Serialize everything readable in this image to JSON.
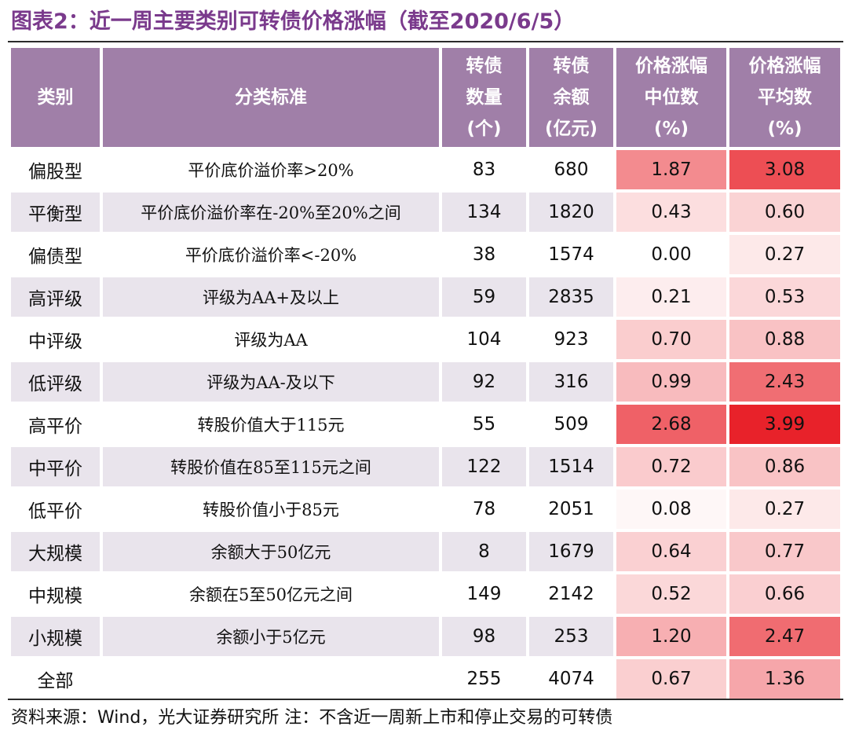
{
  "title": "图表2：近一周主要类别可转债价格涨幅（截至2020/6/5）",
  "headers": {
    "category": "类别",
    "criteria": "分类标准",
    "count": [
      "转债",
      "数量",
      "(个)"
    ],
    "balance": [
      "转债",
      "余额",
      "(亿元)"
    ],
    "median": [
      "价格涨幅",
      "中位数",
      "(%)"
    ],
    "mean": [
      "价格涨幅",
      "平均数",
      "(%)"
    ]
  },
  "rows": [
    {
      "category": "偏股型",
      "criteria": "平价底价溢价率>20%",
      "count": "83",
      "balance": "680",
      "median": "1.87",
      "mean": "3.08"
    },
    {
      "category": "平衡型",
      "criteria": "平价底价溢价率在-20%至20%之间",
      "count": "134",
      "balance": "1820",
      "median": "0.43",
      "mean": "0.60"
    },
    {
      "category": "偏债型",
      "criteria": "平价底价溢价率<-20%",
      "count": "38",
      "balance": "1574",
      "median": "0.00",
      "mean": "0.27"
    },
    {
      "category": "高评级",
      "criteria": "评级为AA+及以上",
      "count": "59",
      "balance": "2835",
      "median": "0.21",
      "mean": "0.53"
    },
    {
      "category": "中评级",
      "criteria": "评级为AA",
      "count": "104",
      "balance": "923",
      "median": "0.70",
      "mean": "0.88"
    },
    {
      "category": "低评级",
      "criteria": "评级为AA-及以下",
      "count": "92",
      "balance": "316",
      "median": "0.99",
      "mean": "2.43"
    },
    {
      "category": "高平价",
      "criteria": "转股价值大于115元",
      "count": "55",
      "balance": "509",
      "median": "2.68",
      "mean": "3.99"
    },
    {
      "category": "中平价",
      "criteria": "转股价值在85至115元之间",
      "count": "122",
      "balance": "1514",
      "median": "0.72",
      "mean": "0.86"
    },
    {
      "category": "低平价",
      "criteria": "转股价值小于85元",
      "count": "78",
      "balance": "2051",
      "median": "0.08",
      "mean": "0.27"
    },
    {
      "category": "大规模",
      "criteria": "余额大于50亿元",
      "count": "8",
      "balance": "1679",
      "median": "0.64",
      "mean": "0.77"
    },
    {
      "category": "中规模",
      "criteria": "余额在5至50亿元之间",
      "count": "149",
      "balance": "2142",
      "median": "0.52",
      "mean": "0.66"
    },
    {
      "category": "小规模",
      "criteria": "余额小于5亿元",
      "count": "98",
      "balance": "253",
      "median": "1.20",
      "mean": "2.47"
    },
    {
      "category": "全部",
      "criteria": "",
      "count": "255",
      "balance": "4074",
      "median": "0.67",
      "mean": "1.36"
    }
  ],
  "heat_colors": {
    "low": "#ffffff",
    "high": "#e8222a"
  },
  "heat_range": [
    0,
    3.99
  ],
  "header_color": "#a07fa8",
  "alt_row_color": "#e9e4ec",
  "source_note": "资料来源：Wind，光大证券研究所   注：不含近一周新上市和停止交易的可转债"
}
